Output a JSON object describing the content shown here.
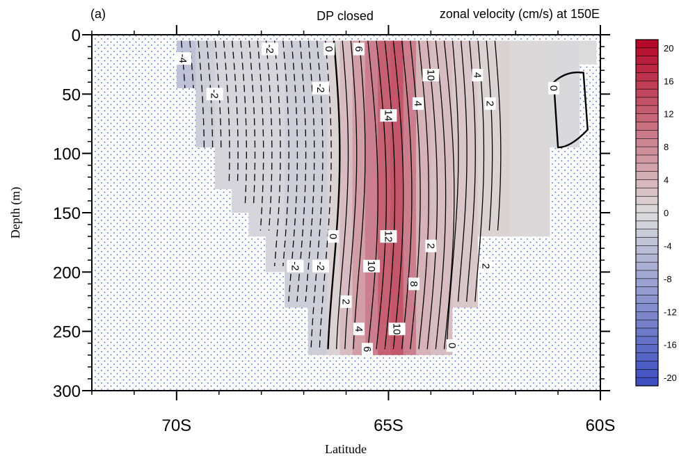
{
  "chart_data": {
    "type": "contour",
    "panel_label": "(a)",
    "title": "DP closed",
    "subtitle": "zonal velocity (cm/s) at 150E",
    "xlabel": "Latitude",
    "ylabel": "Depth (m)",
    "x_ticks": [
      {
        "value": -70,
        "label": "70S"
      },
      {
        "value": -65,
        "label": "65S"
      },
      {
        "value": -60,
        "label": "60S"
      }
    ],
    "x_minor_step": 1,
    "xlim": [
      -72,
      -60
    ],
    "y_ticks": [
      0,
      50,
      100,
      150,
      200,
      250,
      300
    ],
    "y_minor_step": 10,
    "ylim": [
      0,
      300
    ],
    "y_inverted": true,
    "land_pattern": "dotted",
    "colorbar": {
      "labels": [
        20,
        16,
        12,
        8,
        4,
        0,
        -4,
        -8,
        -12,
        -16,
        -20
      ],
      "min": -21,
      "max": 21,
      "step": 1,
      "color_low": "#3b4cc0",
      "color_mid": "#dddcdc",
      "color_high": "#b40426"
    },
    "columns": [
      {
        "lat": -69.8,
        "bottom": 45,
        "value": -4
      },
      {
        "lat": -69.3,
        "bottom": 95,
        "value": -2
      },
      {
        "lat": -68.9,
        "bottom": 130,
        "value": -1
      },
      {
        "lat": -68.5,
        "bottom": 150,
        "value": -1
      },
      {
        "lat": -68.1,
        "bottom": 170,
        "value": -1
      },
      {
        "lat": -67.7,
        "bottom": 200,
        "value": -1
      },
      {
        "lat": -67.2,
        "bottom": 230,
        "value": -2
      },
      {
        "lat": -66.6,
        "bottom": 270,
        "value": -2
      },
      {
        "lat": -66.3,
        "bottom": 270,
        "value": 1
      },
      {
        "lat": -66.0,
        "bottom": 270,
        "value": 3
      },
      {
        "lat": -65.7,
        "bottom": 270,
        "value": 6
      },
      {
        "lat": -65.4,
        "bottom": 270,
        "value": 9
      },
      {
        "lat": -65.1,
        "bottom": 270,
        "value": 12
      },
      {
        "lat": -64.8,
        "bottom": 270,
        "value": 13
      },
      {
        "lat": -64.5,
        "bottom": 270,
        "value": 9
      },
      {
        "lat": -64.2,
        "bottom": 270,
        "value": 4
      },
      {
        "lat": -63.8,
        "bottom": 270,
        "value": 3
      },
      {
        "lat": -63.2,
        "bottom": 230,
        "value": 2
      },
      {
        "lat": -62.6,
        "bottom": 170,
        "value": 1
      },
      {
        "lat": -61.7,
        "bottom": 170,
        "value": 0.5
      },
      {
        "lat": -60.7,
        "bottom": 95,
        "value": -0.5
      },
      {
        "lat": -60.3,
        "bottom": 25,
        "value": 0
      }
    ],
    "contour_labels": [
      {
        "lat": -69.85,
        "depth": 20,
        "text": "-4"
      },
      {
        "lat": -69.1,
        "depth": 50,
        "text": "-2"
      },
      {
        "lat": -67.8,
        "depth": 12,
        "text": "-2"
      },
      {
        "lat": -66.4,
        "depth": 12,
        "text": "0"
      },
      {
        "lat": -65.7,
        "depth": 12,
        "text": "6"
      },
      {
        "lat": -66.6,
        "depth": 45,
        "text": "-2"
      },
      {
        "lat": -64.0,
        "depth": 34,
        "text": "10"
      },
      {
        "lat": -62.9,
        "depth": 34,
        "text": "4"
      },
      {
        "lat": -64.3,
        "depth": 58,
        "text": "4"
      },
      {
        "lat": -62.6,
        "depth": 58,
        "text": "2"
      },
      {
        "lat": -65.0,
        "depth": 68,
        "text": "14"
      },
      {
        "lat": -61.1,
        "depth": 45,
        "text": "0"
      },
      {
        "lat": -66.3,
        "depth": 170,
        "text": "0"
      },
      {
        "lat": -65.0,
        "depth": 170,
        "text": "12"
      },
      {
        "lat": -64.0,
        "depth": 178,
        "text": "2"
      },
      {
        "lat": -67.2,
        "depth": 195,
        "text": "-2"
      },
      {
        "lat": -66.6,
        "depth": 195,
        "text": "-2"
      },
      {
        "lat": -65.4,
        "depth": 195,
        "text": "10"
      },
      {
        "lat": -62.7,
        "depth": 195,
        "text": "2"
      },
      {
        "lat": -64.4,
        "depth": 210,
        "text": "8"
      },
      {
        "lat": -66.0,
        "depth": 225,
        "text": "2"
      },
      {
        "lat": -65.7,
        "depth": 248,
        "text": "4"
      },
      {
        "lat": -64.8,
        "depth": 248,
        "text": "10"
      },
      {
        "lat": -63.5,
        "depth": 262,
        "text": "0"
      },
      {
        "lat": -65.5,
        "depth": 265,
        "text": "6"
      }
    ],
    "grid": false
  }
}
